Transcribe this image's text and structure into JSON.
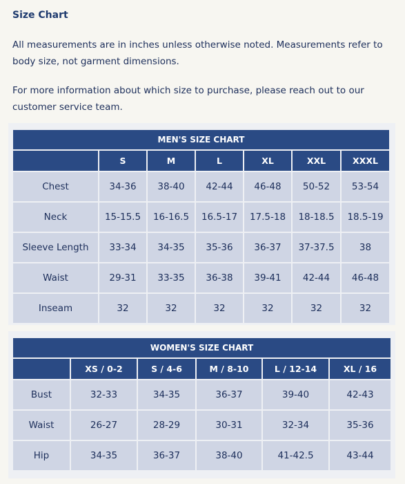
{
  "page": {
    "title": "Size Chart",
    "paragraph1": "All measurements are in inches unless otherwise noted. Measurements refer to body size, not garment dimensions.",
    "paragraph2": "For more information about which size to purchase, please reach out to our customer service team."
  },
  "mens": {
    "caption": "MEN'S SIZE CHART",
    "sizes": [
      "S",
      "M",
      "L",
      "XL",
      "XXL",
      "XXXL"
    ],
    "rows": [
      {
        "label": "Chest",
        "values": [
          "34-36",
          "38-40",
          "42-44",
          "46-48",
          "50-52",
          "53-54"
        ]
      },
      {
        "label": "Neck",
        "values": [
          "15-15.5",
          "16-16.5",
          "16.5-17",
          "17.5-18",
          "18-18.5",
          "18.5-19"
        ]
      },
      {
        "label": "Sleeve Length",
        "values": [
          "33-34",
          "34-35",
          "35-36",
          "36-37",
          "37-37.5",
          "38"
        ]
      },
      {
        "label": "Waist",
        "values": [
          "29-31",
          "33-35",
          "36-38",
          "39-41",
          "42-44",
          "46-48"
        ]
      },
      {
        "label": "Inseam",
        "values": [
          "32",
          "32",
          "32",
          "32",
          "32",
          "32"
        ]
      }
    ]
  },
  "womens": {
    "caption": "WOMEN'S SIZE CHART",
    "sizes": [
      "XS / 0-2",
      "S / 4-6",
      "M / 8-10",
      "L / 12-14",
      "XL / 16"
    ],
    "rows": [
      {
        "label": "Bust",
        "values": [
          "32-33",
          "34-35",
          "36-37",
          "39-40",
          "42-43"
        ]
      },
      {
        "label": "Waist",
        "values": [
          "26-27",
          "28-29",
          "30-31",
          "32-34",
          "35-36"
        ]
      },
      {
        "label": "Hip",
        "values": [
          "34-35",
          "36-37",
          "38-40",
          "41-42.5",
          "43-44"
        ]
      }
    ]
  }
}
